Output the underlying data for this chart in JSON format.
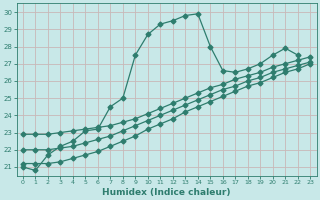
{
  "title": "",
  "xlabel": "Humidex (Indice chaleur)",
  "background_color": "#c8e8e8",
  "line_color": "#2e7d6e",
  "grid_color": "#c8b8b8",
  "xlim": [
    -0.5,
    23.5
  ],
  "ylim": [
    20.5,
    30.5
  ],
  "yticks": [
    21,
    22,
    23,
    24,
    25,
    26,
    27,
    28,
    29,
    30
  ],
  "xticks": [
    0,
    1,
    2,
    3,
    4,
    5,
    6,
    7,
    8,
    9,
    10,
    11,
    12,
    13,
    14,
    15,
    16,
    17,
    18,
    19,
    20,
    21,
    22,
    23
  ],
  "series_main": {
    "x": [
      0,
      1,
      2,
      3,
      4,
      5,
      6,
      7,
      8,
      9,
      10,
      11,
      12,
      13,
      14,
      15,
      16,
      17,
      18,
      19,
      20,
      21,
      22
    ],
    "y": [
      21.0,
      20.8,
      21.7,
      22.2,
      22.5,
      23.1,
      23.2,
      24.5,
      25.0,
      27.5,
      28.7,
      29.3,
      29.5,
      29.8,
      29.9,
      28.0,
      26.6,
      26.5,
      26.7,
      27.0,
      27.5,
      27.9,
      27.5
    ]
  },
  "series_linear": [
    {
      "x": [
        0,
        1,
        2,
        3,
        4,
        5,
        6,
        7,
        8,
        9,
        10,
        11,
        12,
        13,
        14,
        15,
        16,
        17,
        18,
        19,
        20,
        21,
        22,
        23
      ],
      "y": [
        22.9,
        22.9,
        22.9,
        23.0,
        23.1,
        23.2,
        23.3,
        23.4,
        23.6,
        23.8,
        24.1,
        24.4,
        24.7,
        25.0,
        25.3,
        25.6,
        25.8,
        26.1,
        26.3,
        26.5,
        26.8,
        27.0,
        27.2,
        27.4
      ]
    },
    {
      "x": [
        0,
        1,
        2,
        3,
        4,
        5,
        6,
        7,
        8,
        9,
        10,
        11,
        12,
        13,
        14,
        15,
        16,
        17,
        18,
        19,
        20,
        21,
        22,
        23
      ],
      "y": [
        22.0,
        22.0,
        22.0,
        22.1,
        22.2,
        22.4,
        22.6,
        22.8,
        23.1,
        23.4,
        23.7,
        24.0,
        24.3,
        24.6,
        24.9,
        25.2,
        25.5,
        25.7,
        26.0,
        26.2,
        26.5,
        26.7,
        26.9,
        27.1
      ]
    },
    {
      "x": [
        0,
        1,
        2,
        3,
        4,
        5,
        6,
        7,
        8,
        9,
        10,
        11,
        12,
        13,
        14,
        15,
        16,
        17,
        18,
        19,
        20,
        21,
        22,
        23
      ],
      "y": [
        21.2,
        21.2,
        21.2,
        21.3,
        21.5,
        21.7,
        21.9,
        22.2,
        22.5,
        22.8,
        23.2,
        23.5,
        23.8,
        24.2,
        24.5,
        24.8,
        25.1,
        25.4,
        25.7,
        25.9,
        26.2,
        26.5,
        26.7,
        27.0
      ]
    }
  ]
}
